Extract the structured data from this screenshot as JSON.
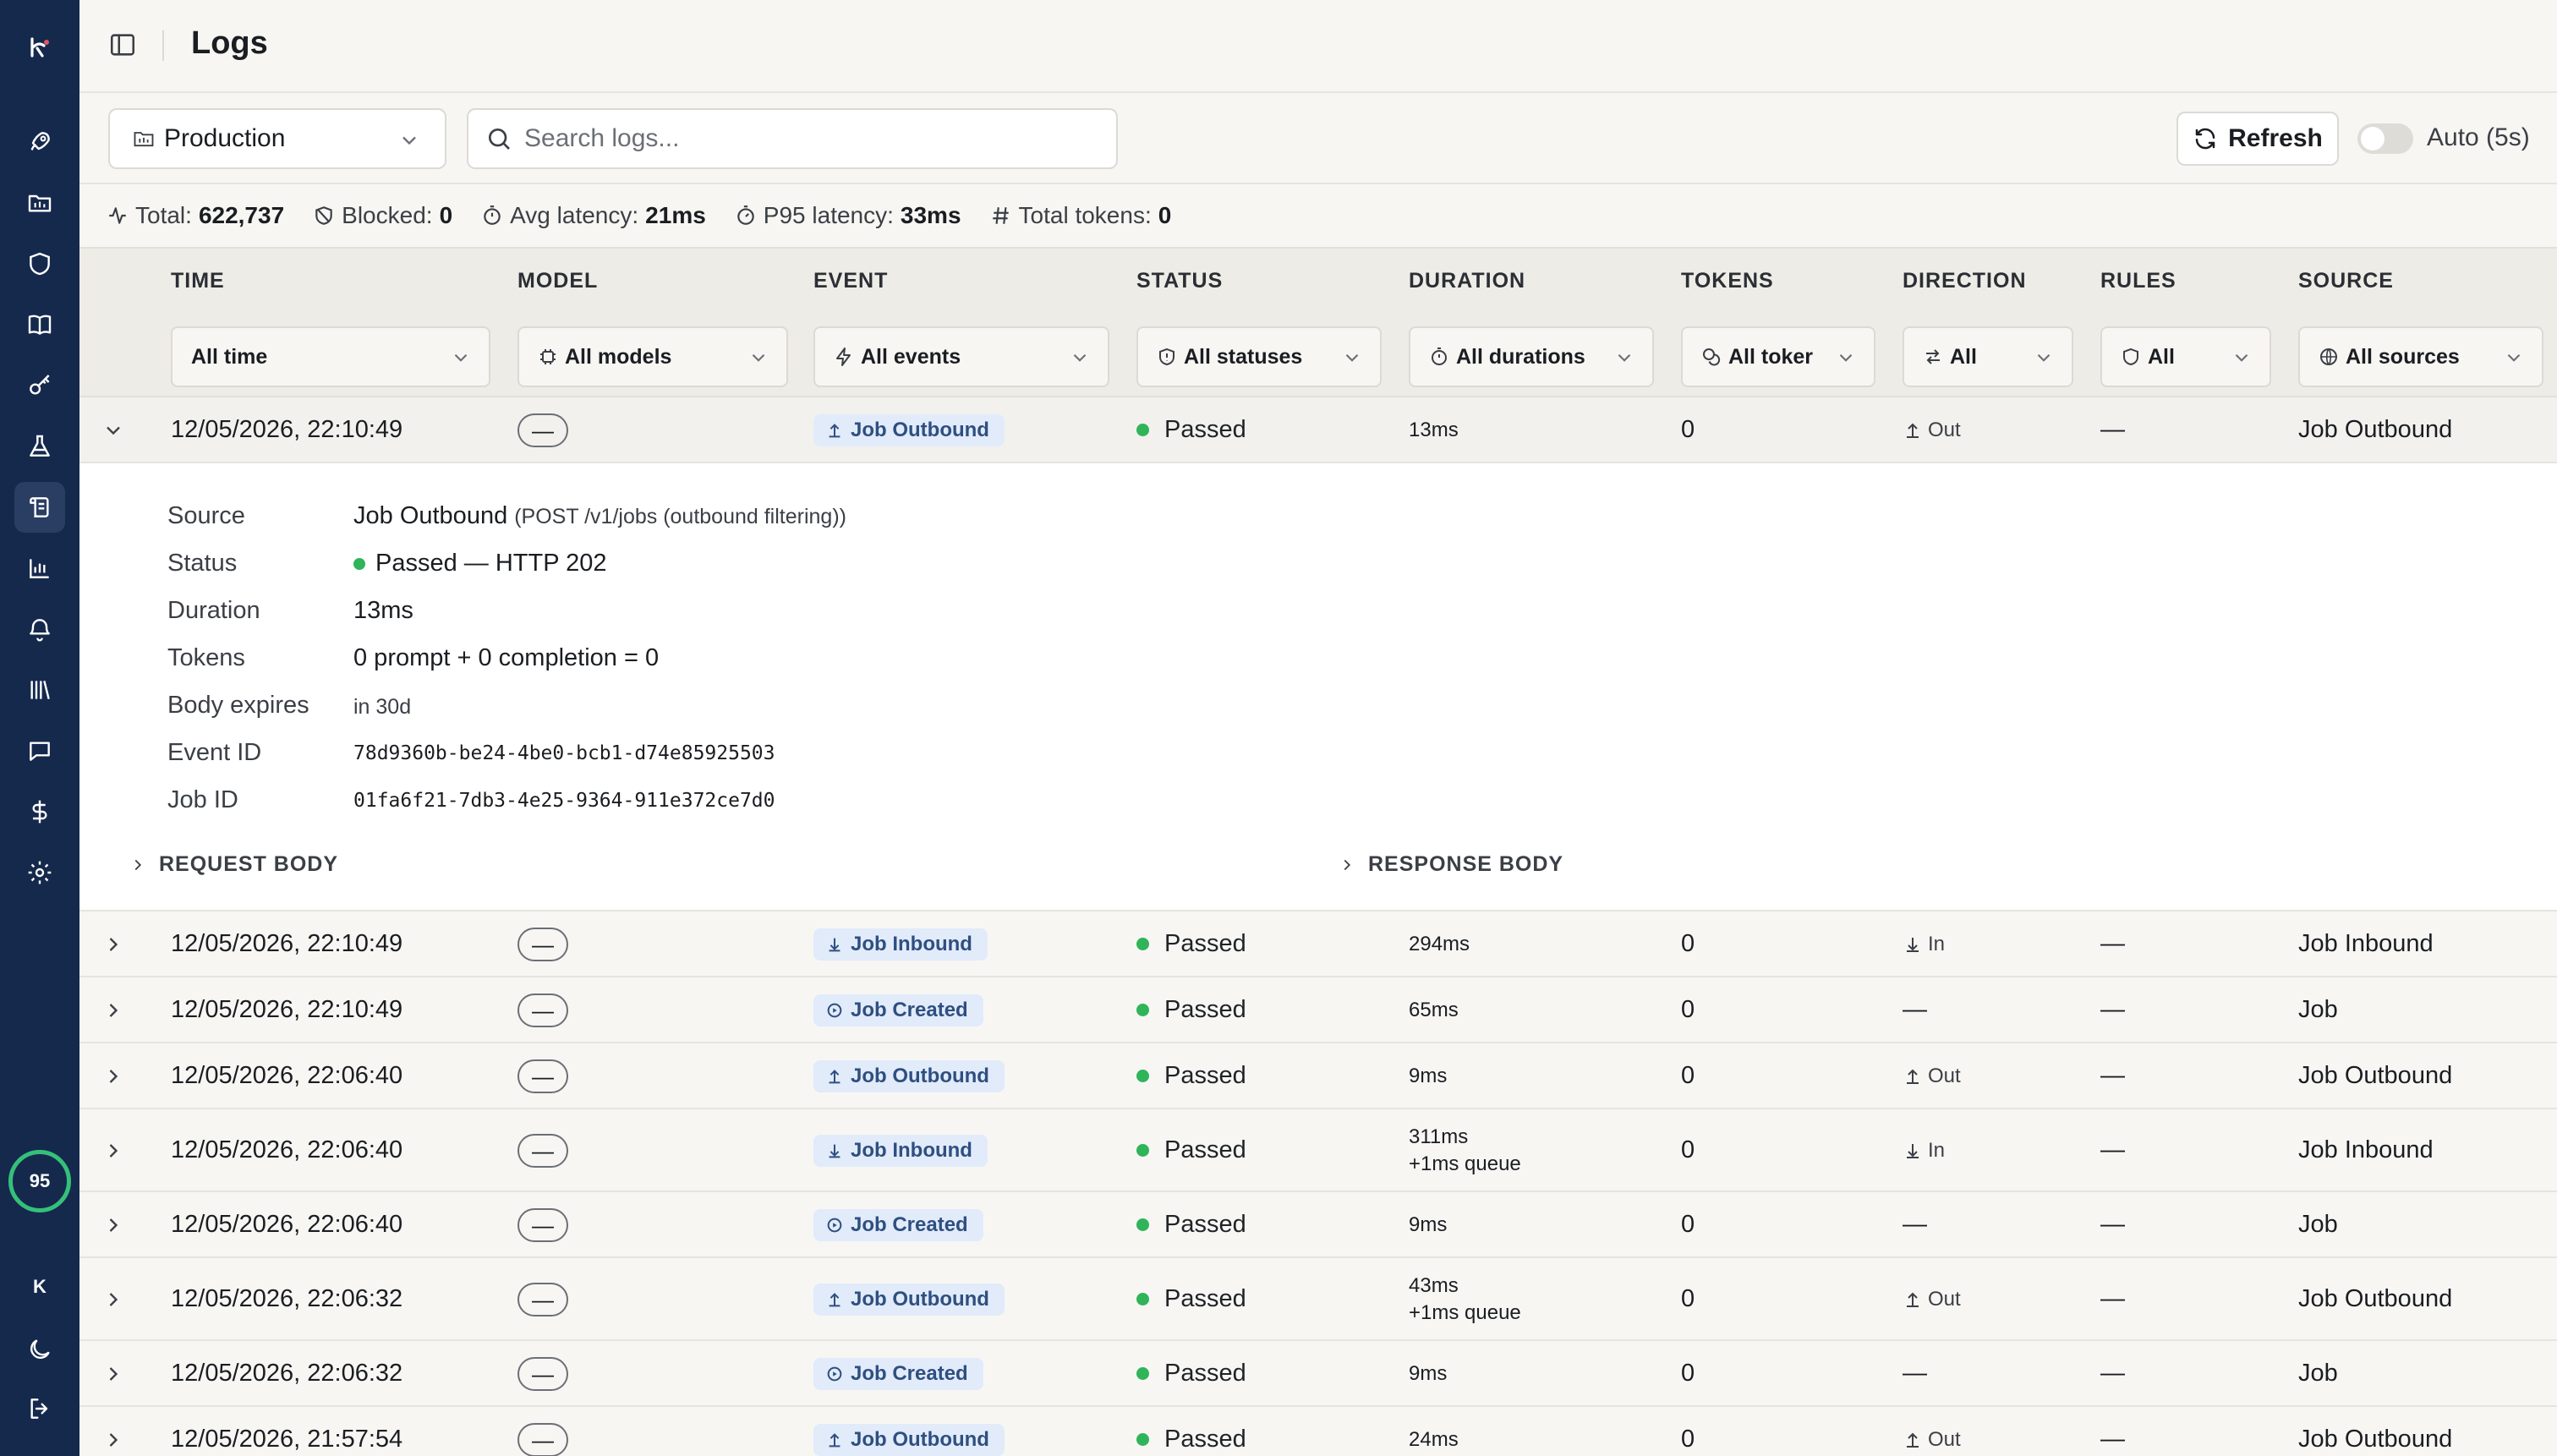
{
  "sidebar": {
    "score": "95",
    "avatar": "K",
    "items": [
      {
        "icon": "rocket-icon"
      },
      {
        "icon": "folder-icon"
      },
      {
        "icon": "shield-icon"
      },
      {
        "icon": "book-icon"
      },
      {
        "icon": "key-icon"
      },
      {
        "icon": "flask-icon"
      },
      {
        "icon": "logs-icon",
        "active": true
      },
      {
        "icon": "bar-chart-icon"
      },
      {
        "icon": "bell-icon"
      },
      {
        "icon": "library-icon"
      },
      {
        "icon": "message-icon"
      },
      {
        "icon": "dollar-icon"
      },
      {
        "icon": "gear-icon"
      }
    ]
  },
  "header": {
    "title": "Logs"
  },
  "toolbar": {
    "environment": "Production",
    "search_placeholder": "Search logs...",
    "refresh_label": "Refresh",
    "auto_label": "Auto (5s)",
    "auto_enabled": false
  },
  "stats": {
    "total_label": "Total:",
    "total_value": "622,737",
    "blocked_label": "Blocked:",
    "blocked_value": "0",
    "avg_label": "Avg latency:",
    "avg_value": "21ms",
    "p95_label": "P95 latency:",
    "p95_value": "33ms",
    "tokens_label": "Total tokens:",
    "tokens_value": "0"
  },
  "columns": [
    "TIME",
    "MODEL",
    "EVENT",
    "STATUS",
    "DURATION",
    "TOKENS",
    "DIRECTION",
    "RULES",
    "SOURCE"
  ],
  "filters": {
    "time": "All time",
    "model": "All models",
    "event": "All events",
    "status": "All statuses",
    "duration": "All durations",
    "tokens": "All toker",
    "direction": "All",
    "rules": "All",
    "source": "All sources"
  },
  "rows": [
    {
      "time": "12/05/2026, 22:10:49",
      "model": "—",
      "event": "Job Outbound",
      "status": "Passed",
      "duration": "13ms",
      "queue": "",
      "tokens": "0",
      "direction": "Out",
      "rules": "—",
      "source": "Job Outbound"
    },
    {
      "time": "12/05/2026, 22:10:49",
      "model": "—",
      "event": "Job Inbound",
      "status": "Passed",
      "duration": "294ms",
      "queue": "",
      "tokens": "0",
      "direction": "In",
      "rules": "—",
      "source": "Job Inbound"
    },
    {
      "time": "12/05/2026, 22:10:49",
      "model": "—",
      "event": "Job Created",
      "status": "Passed",
      "duration": "65ms",
      "queue": "",
      "tokens": "0",
      "direction": "—",
      "rules": "—",
      "source": "Job"
    },
    {
      "time": "12/05/2026, 22:06:40",
      "model": "—",
      "event": "Job Outbound",
      "status": "Passed",
      "duration": "9ms",
      "queue": "",
      "tokens": "0",
      "direction": "Out",
      "rules": "—",
      "source": "Job Outbound"
    },
    {
      "time": "12/05/2026, 22:06:40",
      "model": "—",
      "event": "Job Inbound",
      "status": "Passed",
      "duration": "311ms",
      "queue": "+1ms queue",
      "tokens": "0",
      "direction": "In",
      "rules": "—",
      "source": "Job Inbound"
    },
    {
      "time": "12/05/2026, 22:06:40",
      "model": "—",
      "event": "Job Created",
      "status": "Passed",
      "duration": "9ms",
      "queue": "",
      "tokens": "0",
      "direction": "—",
      "rules": "—",
      "source": "Job"
    },
    {
      "time": "12/05/2026, 22:06:32",
      "model": "—",
      "event": "Job Outbound",
      "status": "Passed",
      "duration": "43ms",
      "queue": "+1ms queue",
      "tokens": "0",
      "direction": "Out",
      "rules": "—",
      "source": "Job Outbound"
    },
    {
      "time": "12/05/2026, 22:06:32",
      "model": "—",
      "event": "Job Created",
      "status": "Passed",
      "duration": "9ms",
      "queue": "",
      "tokens": "0",
      "direction": "—",
      "rules": "—",
      "source": "Job"
    },
    {
      "time": "12/05/2026, 21:57:54",
      "model": "—",
      "event": "Job Outbound",
      "status": "Passed",
      "duration": "24ms",
      "queue": "",
      "tokens": "0",
      "direction": "Out",
      "rules": "—",
      "source": "Job Outbound"
    }
  ],
  "detail": {
    "source_label": "Source",
    "source_value": "Job Outbound",
    "source_sub": "(POST /v1/jobs (outbound filtering))",
    "status_label": "Status",
    "status_value": "Passed — HTTP 202",
    "duration_label": "Duration",
    "duration_value": "13ms",
    "tokens_label": "Tokens",
    "tokens_value": "0 prompt + 0 completion = 0",
    "expires_label": "Body expires",
    "expires_value": "in 30d",
    "event_id_label": "Event ID",
    "event_id_value": "78d9360b-be24-4be0-bcb1-d74e85925503",
    "job_id_label": "Job ID",
    "job_id_value": "01fa6f21-7db3-4e25-9364-911e372ce7d0",
    "request_body_label": "REQUEST BODY",
    "response_body_label": "RESPONSE BODY"
  },
  "colors": {
    "sidebar": "#15294d",
    "passed": "#2fb45a",
    "badge_bg": "#e1ebfa",
    "badge_text": "#2f4f80",
    "score_ring": "#35c07a"
  }
}
